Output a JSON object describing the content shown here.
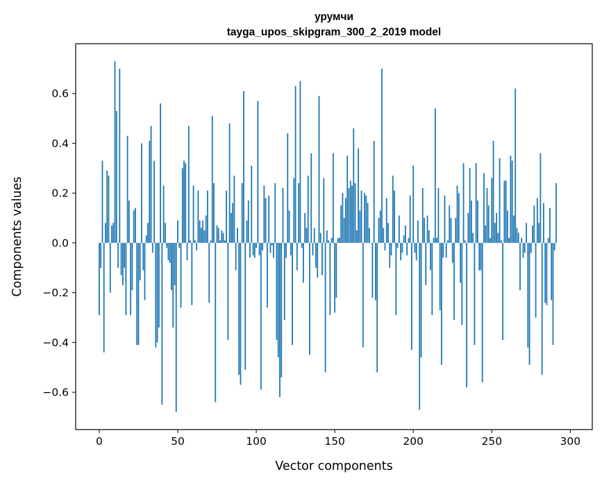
{
  "chart_data": {
    "type": "bar",
    "title": "урумчи",
    "subtitle": "tayga_upos_skipgram_300_2_2019 model",
    "xlabel": "Vector components",
    "ylabel": "Components values",
    "xlim": [
      -15,
      314
    ],
    "ylim": [
      -0.75,
      0.8
    ],
    "xticks": [
      0,
      50,
      100,
      150,
      200,
      250,
      300
    ],
    "yticks": [
      -0.6,
      -0.4,
      -0.2,
      0.0,
      0.2,
      0.4,
      0.6
    ],
    "ytick_labels": [
      "−0.6",
      "−0.4",
      "−0.2",
      "0.0",
      "0.2",
      "0.4",
      "0.6"
    ],
    "bar_color": "#1f77b4",
    "series": [
      {
        "name": "урумчи",
        "x_start": 0,
        "values": [
          -0.29,
          -0.1,
          0.33,
          -0.44,
          0.08,
          0.29,
          0.27,
          -0.2,
          0.07,
          0.08,
          0.73,
          0.53,
          -0.1,
          0.7,
          -0.13,
          -0.17,
          -0.1,
          -0.29,
          0.43,
          0.17,
          -0.29,
          -0.19,
          0.13,
          0.14,
          -0.41,
          -0.41,
          -0.15,
          0.4,
          -0.11,
          -0.23,
          0.03,
          0.08,
          0.41,
          0.47,
          -0.04,
          0.33,
          -0.42,
          -0.4,
          -0.34,
          0.56,
          -0.65,
          0.23,
          0.08,
          -0.02,
          -0.07,
          -0.08,
          -0.19,
          -0.34,
          -0.17,
          -0.68,
          0.09,
          -0.02,
          -0.26,
          0.3,
          0.33,
          0.32,
          -0.07,
          0.47,
          0.01,
          -0.25,
          0.23,
          0.01,
          -0.03,
          0.21,
          0.09,
          0.06,
          0.09,
          0.05,
          0.11,
          0.21,
          -0.24,
          0.01,
          0.51,
          0.24,
          -0.64,
          0.07,
          0.06,
          0.01,
          0.05,
          0.04,
          0.01,
          0.21,
          -0.39,
          0.48,
          0.12,
          0.16,
          0.27,
          -0.11,
          0.06,
          -0.53,
          -0.57,
          0.24,
          0.61,
          -0.51,
          0.09,
          0.17,
          -0.06,
          0.31,
          -0.05,
          -0.06,
          -0.02,
          0.57,
          -0.05,
          -0.59,
          -0.03,
          0.23,
          0.18,
          -0.26,
          0.19,
          -0.04,
          -0.01,
          -0.06,
          0.24,
          -0.39,
          -0.46,
          -0.62,
          -0.54,
          0.22,
          -0.31,
          -0.06,
          0.44,
          0.13,
          -0.05,
          -0.41,
          0.26,
          0.63,
          -0.11,
          0.24,
          0.65,
          -0.02,
          -0.16,
          0.12,
          0.06,
          0.27,
          -0.45,
          0.36,
          -0.05,
          0.06,
          -0.1,
          -0.14,
          0.59,
          0.04,
          -0.13,
          0.26,
          -0.52,
          0.05,
          0.01,
          -0.29,
          0.02,
          0.36,
          -0.28,
          -0.22,
          0.02,
          0.02,
          0.15,
          0.2,
          0.1,
          0.18,
          0.35,
          0.22,
          0.25,
          0.23,
          0.46,
          0.24,
          0.05,
          0.38,
          0.13,
          0.21,
          -0.42,
          0.2,
          0.19,
          0.16,
          0.06,
          0.0,
          -0.22,
          0.41,
          -0.23,
          -0.52,
          0.1,
          0.13,
          0.7,
          0.06,
          -0.03,
          0.18,
          0.08,
          -0.1,
          -0.05,
          0.27,
          0.21,
          -0.29,
          -0.02,
          0.11,
          -0.07,
          -0.04,
          0.03,
          0.07,
          -0.05,
          0.02,
          0.19,
          -0.43,
          0.31,
          -0.04,
          -0.07,
          0.09,
          -0.67,
          -0.46,
          0.22,
          0.1,
          -0.17,
          0.11,
          0.05,
          -0.11,
          -0.29,
          0.02,
          0.54,
          0.02,
          0.22,
          -0.27,
          -0.49,
          -0.06,
          0.19,
          -0.06,
          0.01,
          0.15,
          0.1,
          -0.08,
          -0.31,
          0.1,
          0.23,
          0.2,
          -0.16,
          -0.33,
          0.32,
          0.01,
          -0.58,
          0.12,
          0.3,
          0.17,
          0.04,
          -0.41,
          0.32,
          0.17,
          -0.11,
          -0.11,
          -0.56,
          0.28,
          0.07,
          0.22,
          0.15,
          0.02,
          0.26,
          0.41,
          0.08,
          0.12,
          0.04,
          0.34,
          0.01,
          -0.39,
          0.25,
          0.25,
          0.13,
          0.02,
          0.35,
          0.33,
          0.11,
          0.62,
          0.06,
          0.04,
          -0.19,
          0.02,
          -0.06,
          -0.04,
          0.08,
          -0.42,
          -0.49,
          -0.04,
          0.07,
          0.15,
          -0.3,
          0.18,
          0.08,
          0.36,
          -0.53,
          0.16,
          -0.24,
          -0.25,
          0.02,
          0.14,
          -0.23,
          -0.41,
          -0.03,
          0.24
        ]
      }
    ]
  }
}
